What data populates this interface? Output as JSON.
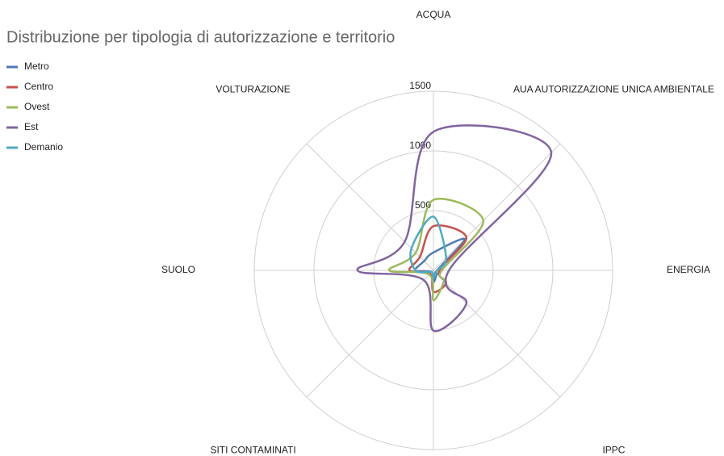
{
  "chart_data": {
    "type": "radar",
    "title": "Distribuzione per tipologia di autorizzazione e territorio",
    "categories": [
      "ACQUA",
      "AUA AUTORIZZAZIONE UNICA AMBIENTALE",
      "ENERGIA",
      "IPPC",
      null,
      "SITI CONTAMINATI",
      "SUOLO",
      "VOLTURAZIONE"
    ],
    "ylim": [
      0,
      1500
    ],
    "yticks": [
      500,
      1000,
      1500
    ],
    "grid": true,
    "legend": "top-left",
    "series": [
      {
        "name": "Metro",
        "color": "#4e79b9",
        "values": [
          150,
          370,
          30,
          40,
          100,
          20,
          150,
          110
        ]
      },
      {
        "name": "Centro",
        "color": "#c9504e",
        "values": [
          370,
          390,
          50,
          150,
          180,
          40,
          200,
          160
        ]
      },
      {
        "name": "Ovest",
        "color": "#9bbb59",
        "values": [
          590,
          590,
          70,
          125,
          250,
          50,
          370,
          210
        ]
      },
      {
        "name": "Est",
        "color": "#8064a2",
        "values": [
          1160,
          1395,
          130,
          390,
          505,
          115,
          635,
          340
        ]
      },
      {
        "name": "Demanio",
        "color": "#4bacc6",
        "values": [
          450,
          150,
          30,
          30,
          60,
          20,
          150,
          260
        ]
      }
    ]
  }
}
